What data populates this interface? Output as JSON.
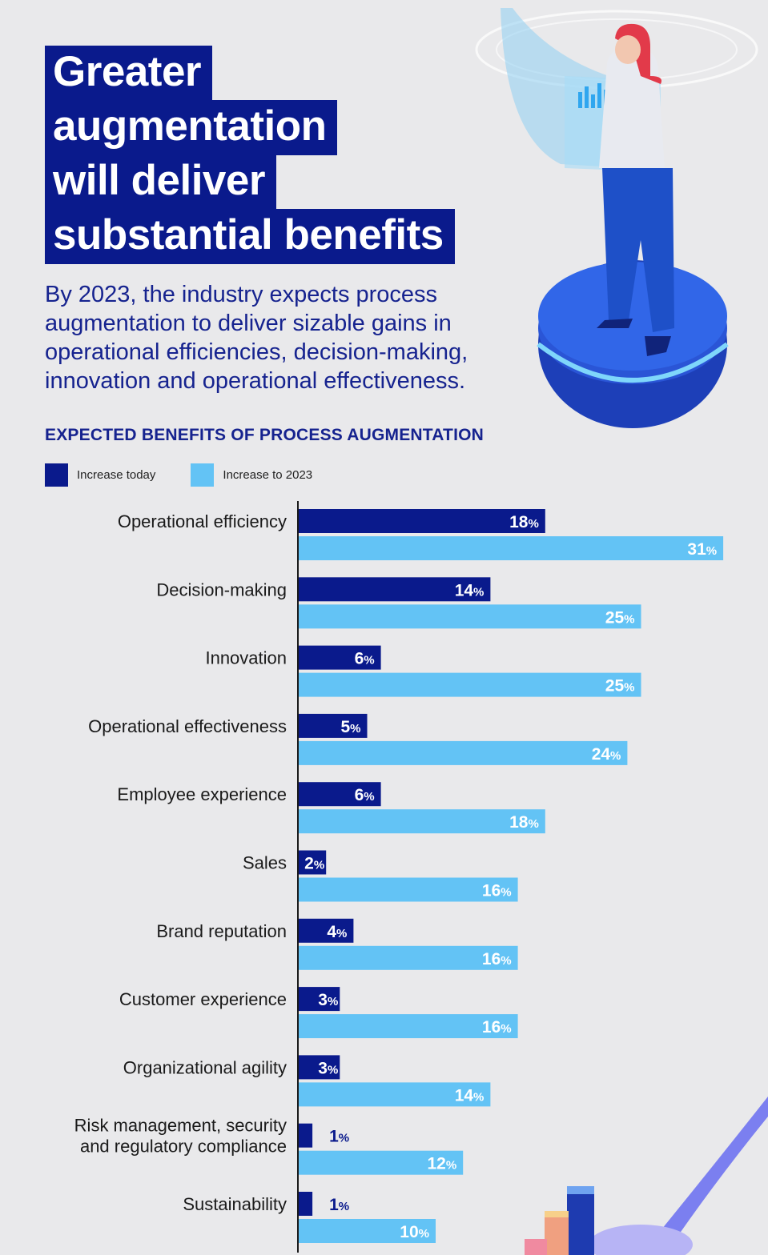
{
  "header": {
    "title_lines": [
      "Greater",
      "augmentation",
      "will deliver",
      "substantial benefits"
    ],
    "subtitle": "By 2023, the industry expects process augmentation to deliver sizable gains in operational efficiencies, decision-making, innovation and operational effectiveness."
  },
  "colors": {
    "dark_blue": "#0a1a8c",
    "light_blue": "#63c3f5",
    "background": "#e9e9eb"
  },
  "chart_data": {
    "type": "bar",
    "orientation": "horizontal",
    "title": "EXPECTED BENEFITS OF PROCESS AUGMENTATION",
    "categories": [
      "Operational efficiency",
      "Decision-making",
      "Innovation",
      "Operational effectiveness",
      "Employee experience",
      "Sales",
      "Brand reputation",
      "Customer experience",
      "Organizational agility",
      "Risk management, security and regulatory compliance",
      "Sustainability"
    ],
    "category_lines": [
      [
        "Operational efficiency"
      ],
      [
        "Decision-making"
      ],
      [
        "Innovation"
      ],
      [
        "Operational effectiveness"
      ],
      [
        "Employee experience"
      ],
      [
        "Sales"
      ],
      [
        "Brand reputation"
      ],
      [
        "Customer experience"
      ],
      [
        "Organizational agility"
      ],
      [
        "Risk management, security",
        "and regulatory compliance"
      ],
      [
        "Sustainability"
      ]
    ],
    "series": [
      {
        "name": "Increase today",
        "color": "#0a1a8c",
        "values": [
          18,
          14,
          6,
          5,
          6,
          2,
          4,
          3,
          3,
          1,
          1
        ]
      },
      {
        "name": "Increase to 2023",
        "color": "#63c3f5",
        "values": [
          31,
          25,
          25,
          24,
          18,
          16,
          16,
          16,
          14,
          12,
          10
        ]
      }
    ],
    "value_suffix": "%",
    "xlim": [
      0,
      31
    ]
  }
}
